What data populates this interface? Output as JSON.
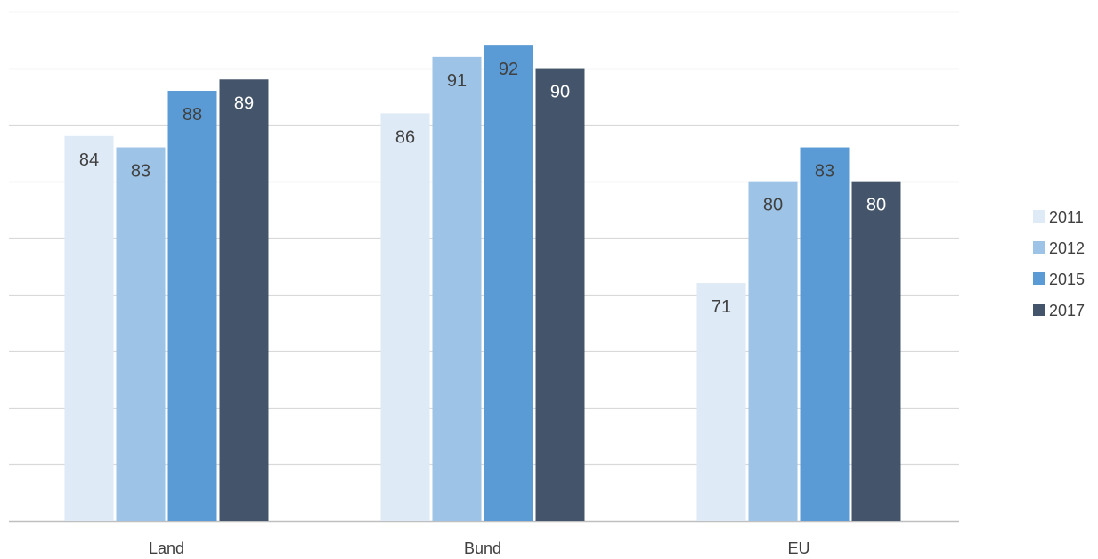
{
  "chart_data": {
    "type": "bar",
    "title": "",
    "xlabel": "",
    "ylabel": "",
    "categories": [
      "Land",
      "Bund",
      "EU"
    ],
    "ylim": [
      50,
      95
    ],
    "y_gridline_step": 5,
    "grid": true,
    "y_axis_labels_shown": false,
    "legend_position": "right",
    "series": [
      {
        "name": "2011",
        "color": "#DEEAF6",
        "label_color": "#404040",
        "values": [
          84,
          86,
          71
        ]
      },
      {
        "name": "2012",
        "color": "#9DC3E6",
        "label_color": "#404040",
        "values": [
          83,
          91,
          80
        ]
      },
      {
        "name": "2015",
        "color": "#5B9BD5",
        "label_color": "#404040",
        "values": [
          88,
          92,
          83
        ]
      },
      {
        "name": "2017",
        "color": "#44546A",
        "label_color": "#ffffff",
        "values": [
          89,
          90,
          80
        ]
      }
    ],
    "gridline_color": "#D9D9D9",
    "axis_color": "#BFBFBF"
  }
}
